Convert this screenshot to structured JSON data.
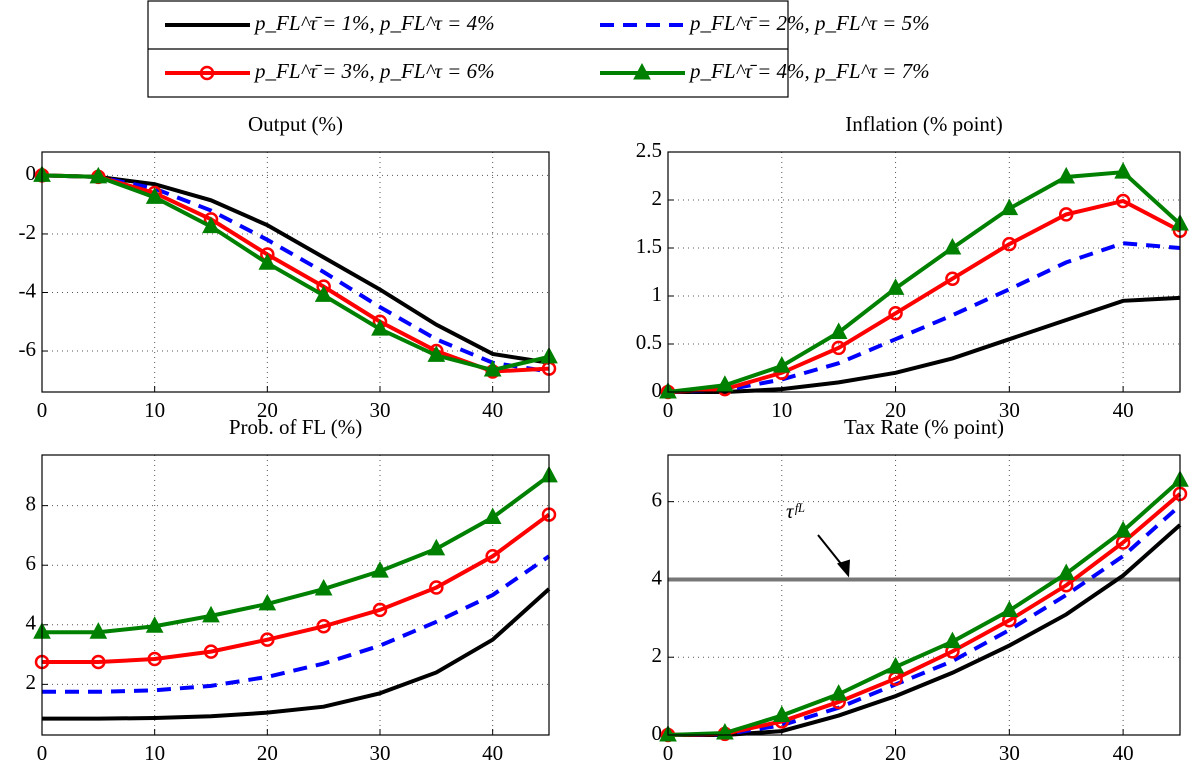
{
  "chart_data": [
    {
      "type": "line",
      "title": "Output (%)",
      "x": [
        0,
        5,
        10,
        15,
        20,
        25,
        30,
        35,
        40,
        45
      ],
      "xlim": [
        0,
        45
      ],
      "xticks": [
        0,
        10,
        20,
        30,
        40
      ],
      "ylim": [
        -7.4,
        0.8
      ],
      "yticks": [
        -6,
        -4,
        -2,
        0
      ],
      "grid": true,
      "series": [
        {
          "name": "p_FL^τ̄ = 1%, p_FL^τ = 4%",
          "color": "#000000",
          "dash": false,
          "marker": "none",
          "values": [
            0,
            -0.05,
            -0.3,
            -0.85,
            -1.7,
            -2.8,
            -3.9,
            -5.1,
            -6.1,
            -6.4
          ]
        },
        {
          "name": "p_FL^τ̄ = 2%, p_FL^τ = 5%",
          "color": "#0000ff",
          "dash": true,
          "marker": "none",
          "values": [
            0,
            -0.05,
            -0.45,
            -1.2,
            -2.2,
            -3.3,
            -4.5,
            -5.6,
            -6.4,
            -6.7
          ]
        },
        {
          "name": "p_FL^τ̄ = 3%, p_FL^τ = 6%",
          "color": "#ff0000",
          "dash": false,
          "marker": "circle",
          "values": [
            0,
            -0.05,
            -0.6,
            -1.5,
            -2.7,
            -3.8,
            -5.0,
            -6.0,
            -6.7,
            -6.6
          ]
        },
        {
          "name": "p_FL^τ̄ = 4%, p_FL^τ = 7%",
          "color": "#008000",
          "dash": false,
          "marker": "triangle",
          "values": [
            0,
            -0.05,
            -0.75,
            -1.75,
            -3.0,
            -4.1,
            -5.25,
            -6.15,
            -6.65,
            -6.2
          ]
        }
      ]
    },
    {
      "type": "line",
      "title": "Inflation (% point)",
      "x": [
        0,
        5,
        10,
        15,
        20,
        25,
        30,
        35,
        40,
        45
      ],
      "xlim": [
        0,
        45
      ],
      "xticks": [
        0,
        10,
        20,
        30,
        40
      ],
      "ylim": [
        0,
        2.5
      ],
      "yticks": [
        0,
        0.5,
        1,
        1.5,
        2,
        2.5
      ],
      "grid": true,
      "series": [
        {
          "color": "#000000",
          "dash": false,
          "marker": "none",
          "values": [
            0,
            0,
            0.03,
            0.1,
            0.2,
            0.35,
            0.55,
            0.75,
            0.95,
            0.98
          ]
        },
        {
          "color": "#0000ff",
          "dash": true,
          "marker": "none",
          "values": [
            0,
            0.02,
            0.13,
            0.3,
            0.55,
            0.8,
            1.07,
            1.35,
            1.55,
            1.5
          ]
        },
        {
          "color": "#ff0000",
          "dash": false,
          "marker": "circle",
          "values": [
            0,
            0.03,
            0.2,
            0.46,
            0.82,
            1.18,
            1.54,
            1.85,
            1.99,
            1.68
          ]
        },
        {
          "color": "#008000",
          "dash": false,
          "marker": "triangle",
          "values": [
            0,
            0.07,
            0.27,
            0.62,
            1.08,
            1.5,
            1.91,
            2.24,
            2.29,
            1.75
          ]
        }
      ]
    },
    {
      "type": "line",
      "title": "Prob. of FL (%)",
      "x": [
        0,
        5,
        10,
        15,
        20,
        25,
        30,
        35,
        40,
        45
      ],
      "xlim": [
        0,
        45
      ],
      "xticks": [
        0,
        10,
        20,
        30,
        40
      ],
      "ylim": [
        0.3,
        9.7
      ],
      "yticks": [
        2,
        4,
        6,
        8
      ],
      "grid": true,
      "series": [
        {
          "color": "#000000",
          "dash": false,
          "marker": "none",
          "values": [
            0.85,
            0.85,
            0.87,
            0.93,
            1.05,
            1.25,
            1.7,
            2.4,
            3.5,
            5.2
          ]
        },
        {
          "color": "#0000ff",
          "dash": true,
          "marker": "none",
          "values": [
            1.75,
            1.75,
            1.8,
            1.95,
            2.25,
            2.7,
            3.3,
            4.1,
            5.0,
            6.3
          ]
        },
        {
          "color": "#ff0000",
          "dash": false,
          "marker": "circle",
          "values": [
            2.75,
            2.75,
            2.85,
            3.1,
            3.5,
            3.95,
            4.5,
            5.25,
            6.3,
            7.7
          ]
        },
        {
          "color": "#008000",
          "dash": false,
          "marker": "triangle",
          "values": [
            3.75,
            3.75,
            3.95,
            4.3,
            4.7,
            5.2,
            5.8,
            6.55,
            7.6,
            9.0
          ]
        }
      ]
    },
    {
      "type": "line",
      "title": "Tax Rate (% point)",
      "x": [
        0,
        5,
        10,
        15,
        20,
        25,
        30,
        35,
        40,
        45
      ],
      "xlim": [
        0,
        45
      ],
      "xticks": [
        0,
        10,
        20,
        30,
        40
      ],
      "ylim": [
        0,
        7.2
      ],
      "yticks": [
        0,
        2,
        4,
        6
      ],
      "grid": true,
      "threshold": {
        "value": 4,
        "label": "τᶠᴸ",
        "color": "#777777"
      },
      "series": [
        {
          "color": "#000000",
          "dash": false,
          "marker": "none",
          "values": [
            0,
            0,
            0.1,
            0.5,
            1.0,
            1.6,
            2.3,
            3.1,
            4.1,
            5.4
          ]
        },
        {
          "color": "#0000ff",
          "dash": true,
          "marker": "none",
          "values": [
            0,
            0.02,
            0.25,
            0.7,
            1.3,
            1.9,
            2.7,
            3.6,
            4.6,
            5.9
          ]
        },
        {
          "color": "#ff0000",
          "dash": false,
          "marker": "circle",
          "values": [
            0,
            0.03,
            0.35,
            0.85,
            1.45,
            2.15,
            2.95,
            3.85,
            4.95,
            6.2
          ]
        },
        {
          "color": "#008000",
          "dash": false,
          "marker": "triangle",
          "values": [
            0,
            0.05,
            0.5,
            1.05,
            1.75,
            2.4,
            3.2,
            4.15,
            5.25,
            6.55
          ]
        }
      ]
    }
  ]
}
